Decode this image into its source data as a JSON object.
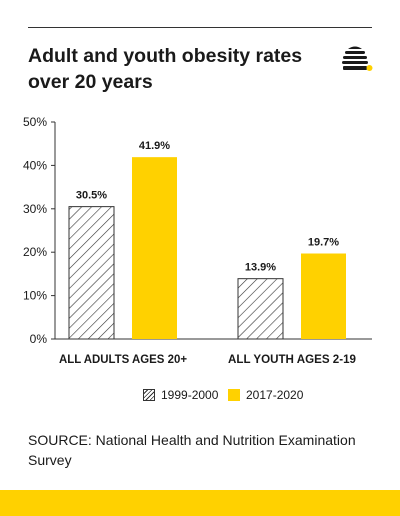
{
  "title": "Adult and youth obesity rates over 20 years",
  "logo_icon": "beehive-icon",
  "colors": {
    "accent": "#FFD100",
    "hatch": "#333333",
    "text": "#1a1a1a"
  },
  "chart_data": {
    "type": "bar",
    "categories": [
      "ALL ADULTS AGES 20+",
      "ALL YOUTH AGES 2-19"
    ],
    "series": [
      {
        "name": "1999-2000",
        "values": [
          30.5,
          13.9
        ],
        "labels": [
          "30.5%",
          "13.9%"
        ],
        "style": "hatched"
      },
      {
        "name": "2017-2020",
        "values": [
          41.9,
          19.7
        ],
        "labels": [
          "41.9%",
          "19.7%"
        ],
        "style": "solid",
        "color": "#FFD100"
      }
    ],
    "ylim": [
      0,
      50
    ],
    "yticks": [
      0,
      10,
      20,
      30,
      40,
      50
    ],
    "ytick_labels": [
      "0%",
      "10%",
      "20%",
      "30%",
      "40%",
      "50%"
    ],
    "grid": false,
    "legend_position": "bottom"
  },
  "source": "SOURCE: National Health and Nutrition Examination Survey"
}
